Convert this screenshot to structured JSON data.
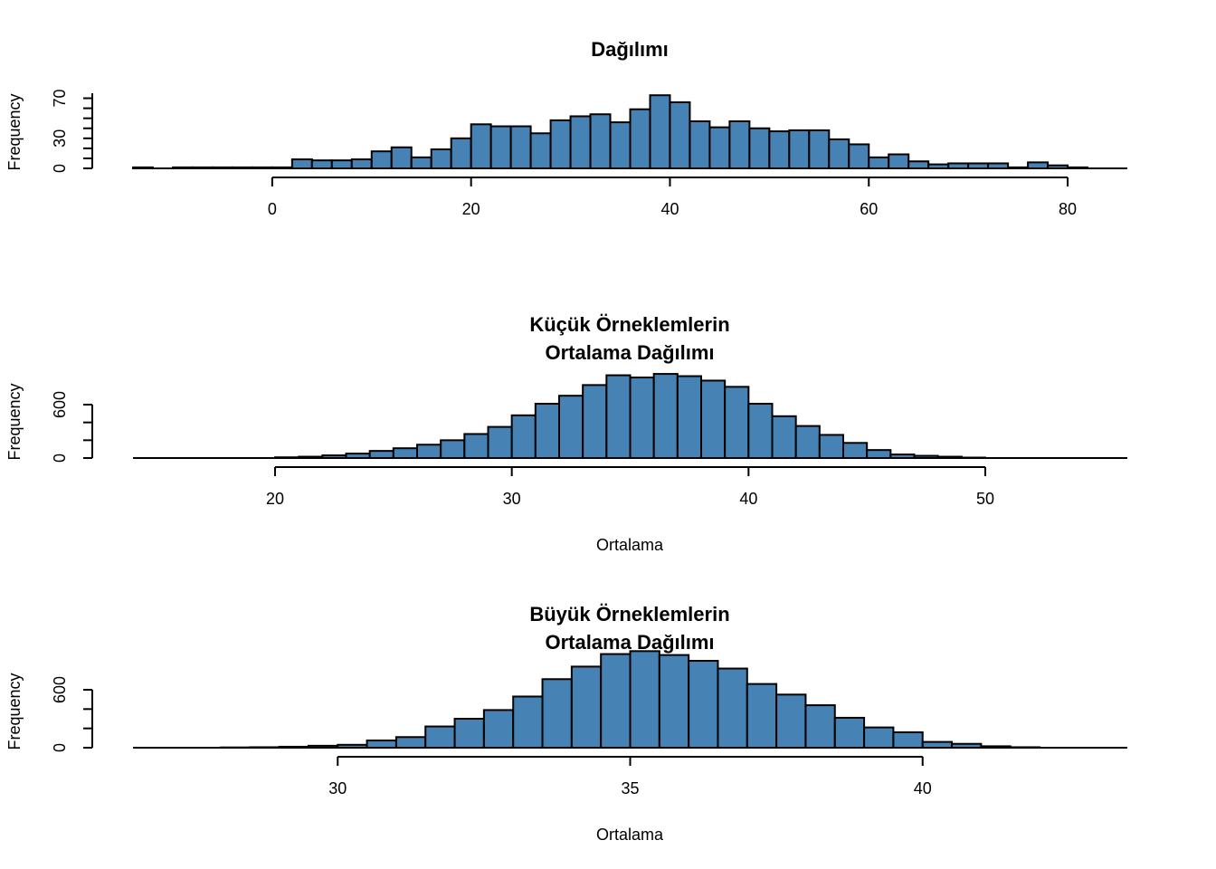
{
  "chart_data": [
    {
      "type": "bar",
      "title": "Dağılımı",
      "xlabel": "",
      "ylabel": "Frequency",
      "bin_width": 2,
      "bin_start": -14,
      "xlim": [
        -14,
        86
      ],
      "ylim": [
        0,
        75
      ],
      "x_ticks": [
        0,
        20,
        40,
        60,
        80
      ],
      "y_ticks": [
        0,
        30,
        70
      ],
      "y_tick_step": 10,
      "values": [
        1,
        0,
        1,
        1,
        1,
        1,
        1,
        1,
        9,
        8,
        8,
        9,
        17,
        21,
        11,
        19,
        30,
        44,
        42,
        42,
        35,
        48,
        52,
        54,
        46,
        59,
        73,
        66,
        47,
        41,
        47,
        40,
        37,
        38,
        38,
        29,
        24,
        11,
        14,
        7,
        4,
        5,
        5,
        5,
        1,
        6,
        3,
        1,
        0,
        0
      ],
      "color": "#4682b4"
    },
    {
      "type": "bar",
      "title_lines": [
        "Küçük Örneklemlerin",
        "Ortalama Dağılımı"
      ],
      "xlabel": "Ortalama",
      "ylabel": "Frequency",
      "bin_width": 1,
      "bin_start": 20,
      "xlim": [
        14,
        56
      ],
      "ylim": [
        0,
        600
      ],
      "x_ticks": [
        20,
        30,
        40,
        50
      ],
      "y_ticks": [
        0,
        600
      ],
      "y_tick_step": 200,
      "values": [
        8,
        15,
        30,
        50,
        80,
        110,
        150,
        200,
        270,
        350,
        480,
        610,
        700,
        820,
        930,
        905,
        945,
        920,
        870,
        800,
        610,
        470,
        360,
        260,
        170,
        90,
        40,
        25,
        15,
        5
      ],
      "color": "#4682b4"
    },
    {
      "type": "bar",
      "title_lines": [
        "Büyük Örneklemlerin",
        "Ortalama Dağılımı"
      ],
      "xlabel": "Ortalama",
      "ylabel": "Frequency",
      "bin_width": 0.5,
      "bin_start": 28,
      "xlim": [
        26.5,
        43.5
      ],
      "ylim": [
        0,
        600
      ],
      "x_ticks": [
        30,
        35,
        40
      ],
      "y_ticks": [
        0,
        600
      ],
      "y_tick_step": 200,
      "values": [
        3,
        5,
        10,
        20,
        30,
        75,
        110,
        220,
        300,
        390,
        530,
        710,
        840,
        970,
        1000,
        960,
        900,
        820,
        660,
        550,
        440,
        310,
        210,
        160,
        60,
        40,
        15,
        5
      ],
      "color": "#4682b4"
    }
  ]
}
